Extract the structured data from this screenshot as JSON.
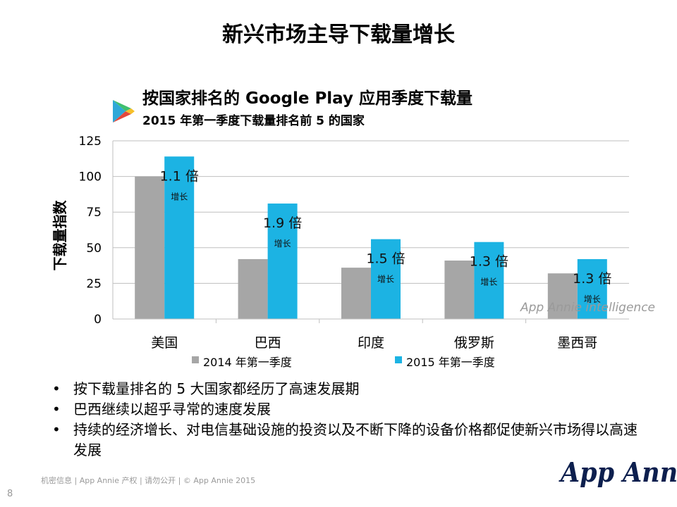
{
  "slide": {
    "title": "新兴市场主导下载量增长",
    "footer": "机密信息 | App Annie 产权 | 请勿公开 | © App Annie 2015",
    "page_number": "8",
    "logo_text": "App Annie",
    "logo_icon": "google-play-icon"
  },
  "bullets": [
    "按下载量排名的 5 大国家都经历了高速发展期",
    "巴西继续以超乎寻常的速度发展",
    "持续的经济增长、对电信基础设施的投资以及不断下降的设备价格都促使新兴市场得以高速发展"
  ],
  "chart_data": {
    "type": "bar",
    "title": "按国家排名的 Google Play 应用季度下载量",
    "subtitle": "2015 年第一季度下载量排名前 5 的国家",
    "ylabel": "下载量指数",
    "xlabel": "",
    "categories": [
      "美国",
      "巴西",
      "印度",
      "俄罗斯",
      "墨西哥"
    ],
    "series": [
      {
        "name": "2014 年第一季度",
        "color": "#a6a6a6",
        "values": [
          100,
          42,
          36,
          41,
          32
        ]
      },
      {
        "name": "2015 年第一季度",
        "color": "#1cb3e3",
        "values": [
          114,
          81,
          56,
          54,
          42
        ]
      }
    ],
    "ylim": [
      0,
      125
    ],
    "yticks": [
      "0",
      "25",
      "50",
      "75",
      "100",
      "125"
    ],
    "grid": true,
    "legend_position": "bottom",
    "annotations": [
      {
        "multiplier": "1.1 倍",
        "label": "增长"
      },
      {
        "multiplier": "1.9 倍",
        "label": "增长"
      },
      {
        "multiplier": "1.5 倍",
        "label": "增长"
      },
      {
        "multiplier": "1.3 倍",
        "label": "增长"
      },
      {
        "multiplier": "1.3 倍",
        "label": "增长"
      }
    ],
    "watermark": "App Annie intelligence"
  }
}
